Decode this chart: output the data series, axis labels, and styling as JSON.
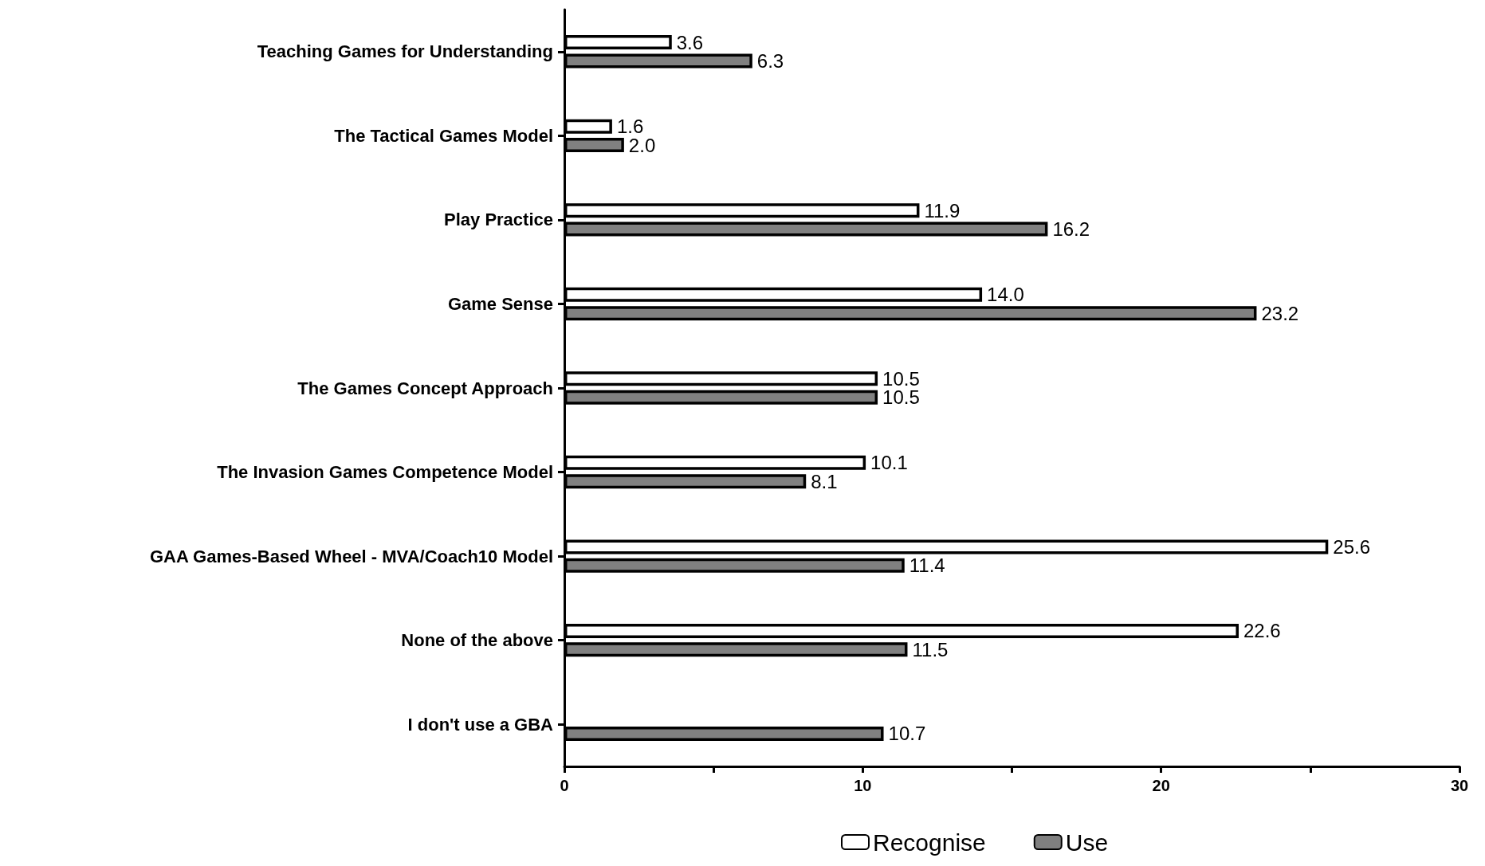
{
  "chart_data": {
    "type": "bar",
    "orientation": "horizontal",
    "categories": [
      "Teaching Games for Understanding",
      "The Tactical Games Model",
      "Play Practice",
      "Game Sense",
      "The Games Concept Approach",
      "The Invasion Games Competence Model",
      "GAA Games-Based Wheel - MVA/Coach10 Model",
      "None of the above",
      "I don't use a GBA"
    ],
    "series": [
      {
        "name": "Recognise",
        "color": "#ffffff",
        "values": [
          3.6,
          1.6,
          11.9,
          14.0,
          10.5,
          10.1,
          25.6,
          22.6,
          null
        ],
        "value_labels": [
          "3.6",
          "1.6",
          "11.9",
          "14.0",
          "10.5",
          "10.1",
          "25.6",
          "22.6",
          null
        ]
      },
      {
        "name": "Use",
        "color": "#808080",
        "values": [
          6.3,
          2.0,
          16.2,
          23.2,
          10.5,
          8.1,
          11.4,
          11.5,
          10.7
        ],
        "value_labels": [
          "6.3",
          "2.0",
          "16.2",
          "23.2",
          "10.5",
          "8.1",
          "11.4",
          "11.5",
          "10.7"
        ]
      }
    ],
    "xlim": [
      0,
      30
    ],
    "xticks": [
      0,
      {
        "value": 5,
        "label": null
      },
      10,
      {
        "value": 15,
        "label": null
      },
      20,
      {
        "value": 25,
        "label": null
      },
      30
    ],
    "grid": false,
    "legend": "bottom"
  }
}
